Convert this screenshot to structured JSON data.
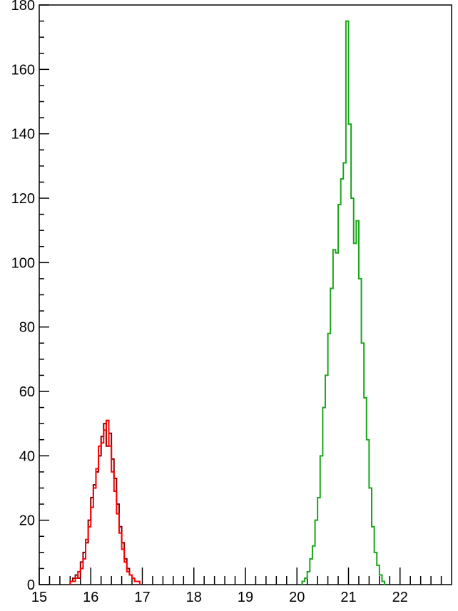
{
  "chart_data": {
    "type": "histogram",
    "title": "",
    "xlabel": "",
    "ylabel": "",
    "xlim": [
      15,
      23
    ],
    "ylim": [
      0,
      180
    ],
    "x_ticks": [
      "15",
      "16",
      "17",
      "18",
      "19",
      "20",
      "21",
      "22"
    ],
    "y_ticks": [
      "0",
      "20",
      "40",
      "60",
      "80",
      "100",
      "120",
      "140",
      "160",
      "180"
    ],
    "bin_width": 0.05,
    "grid": false,
    "legend": "none",
    "series": [
      {
        "color": "#8b0000",
        "x_start": 15.6,
        "values": [
          1,
          2,
          3,
          2,
          7,
          10,
          13,
          20,
          27,
          31,
          35,
          40,
          46,
          50,
          43,
          47,
          39,
          33,
          25,
          18,
          13,
          8,
          5,
          3,
          2,
          1,
          1
        ]
      },
      {
        "color": "#ff0000",
        "x_start": 15.6,
        "values": [
          1,
          1,
          2,
          4,
          5,
          8,
          14,
          18,
          24,
          30,
          36,
          43,
          44,
          48,
          51,
          43,
          35,
          29,
          22,
          16,
          11,
          7,
          4,
          3,
          2,
          1,
          1
        ]
      },
      {
        "color": "#1aa51a",
        "x_start": 20.1,
        "values": [
          1,
          2,
          4,
          8,
          12,
          20,
          27,
          40,
          55,
          65,
          78,
          92,
          104,
          103,
          118,
          126,
          131,
          175,
          143,
          120,
          106,
          113,
          95,
          75,
          58,
          45,
          30,
          18,
          10,
          6,
          3,
          1
        ]
      }
    ]
  }
}
